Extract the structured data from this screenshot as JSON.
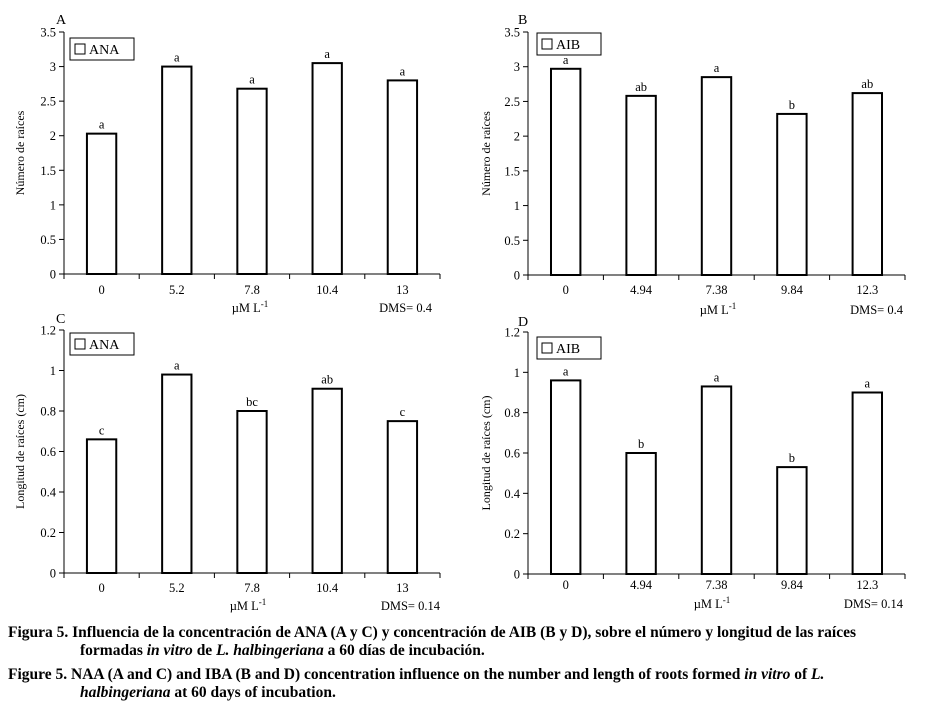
{
  "chart_data": [
    {
      "type": "bar",
      "panel_label": "A",
      "legend": "ANA",
      "ylabel": "Número de raíces",
      "xlabel_prefix": "µM L",
      "xlabel_sup": "-1",
      "dms": "DMS= 0.4",
      "ylim": [
        0,
        3.5
      ],
      "yticks": [
        "0",
        "0.5",
        "1",
        "1.5",
        "2",
        "2.5",
        "3",
        "3.5"
      ],
      "categories": [
        "0",
        "5.2",
        "7.8",
        "10.4",
        "13"
      ],
      "values": [
        2.03,
        3.0,
        2.68,
        3.05,
        2.8
      ],
      "letters": [
        "a",
        "a",
        "a",
        "a",
        "a"
      ]
    },
    {
      "type": "bar",
      "panel_label": "B",
      "legend": "AIB",
      "ylabel": "Número de raíces",
      "xlabel_prefix": "µM L",
      "xlabel_sup": "-1",
      "dms": "DMS= 0.4",
      "ylim": [
        0,
        3.5
      ],
      "yticks": [
        "0",
        "0.5",
        "1",
        "1.5",
        "2",
        "2.5",
        "3",
        "3.5"
      ],
      "categories": [
        "0",
        "4.94",
        "7.38",
        "9.84",
        "12.3"
      ],
      "values": [
        2.97,
        2.58,
        2.85,
        2.32,
        2.62
      ],
      "letters": [
        "a",
        "ab",
        "a",
        "b",
        "ab"
      ]
    },
    {
      "type": "bar",
      "panel_label": "C",
      "legend": "ANA",
      "ylabel": "Longitud de raíces (cm)",
      "xlabel_prefix": "µM L",
      "xlabel_sup": "-1",
      "dms": "DMS= 0.14",
      "ylim": [
        0,
        1.2
      ],
      "yticks": [
        "0",
        "0.2",
        "0.4",
        "0.6",
        "0.8",
        "1",
        "1.2"
      ],
      "categories": [
        "0",
        "5.2",
        "7.8",
        "10.4",
        "13"
      ],
      "values": [
        0.66,
        0.98,
        0.8,
        0.91,
        0.75
      ],
      "letters": [
        "c",
        "a",
        "bc",
        "ab",
        "c"
      ]
    },
    {
      "type": "bar",
      "panel_label": "D",
      "legend": "AIB",
      "ylabel": "Longitud de raíces (cm)",
      "xlabel_prefix": "µM L",
      "xlabel_sup": "-1",
      "dms": "DMS= 0.14",
      "ylim": [
        0,
        1.2
      ],
      "yticks": [
        "0",
        "0.2",
        "0.4",
        "0.6",
        "0.8",
        "1",
        "1.2"
      ],
      "categories": [
        "0",
        "4.94",
        "7.38",
        "9.84",
        "12.3"
      ],
      "values": [
        0.96,
        0.6,
        0.93,
        0.53,
        0.9
      ],
      "letters": [
        "a",
        "b",
        "a",
        "b",
        "a"
      ]
    }
  ],
  "caption": {
    "es_lead": "Figura 5. Influencia de la concentración de ANA (A y C) y concentración de AIB (B y D), sobre el número y longitud de las raíces",
    "es_cont_1": "formadas ",
    "es_cont_italic_1": "in vitro",
    "es_cont_2": " de ",
    "es_cont_italic_2": "L. halbingeriana",
    "es_cont_3": " a 60 días de incubación.",
    "en_lead_1": "Figure 5. NAA (A and C) and IBA (B and D) concentration influence on the number and length of roots formed ",
    "en_lead_italic": "in vitro",
    "en_lead_2": " of ",
    "en_lead_italic_2": "L.",
    "en_cont_italic": "halbingeriana",
    "en_cont": " at 60 days of incubation."
  }
}
